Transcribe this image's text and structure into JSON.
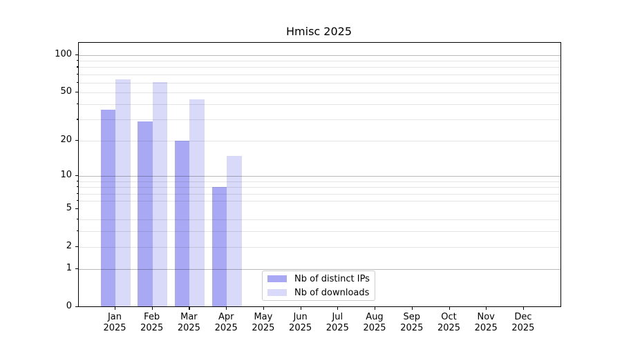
{
  "chart_data": {
    "type": "bar",
    "title": "Hmisc 2025",
    "categories": [
      "Jan",
      "Feb",
      "Mar",
      "Apr",
      "May",
      "Jun",
      "Jul",
      "Aug",
      "Sep",
      "Oct",
      "Nov",
      "Dec"
    ],
    "category_year": "2025",
    "series": [
      {
        "name": "Nb of distinct IPs",
        "color": "#a8a8f4",
        "values": [
          36,
          29,
          20,
          8,
          null,
          null,
          null,
          null,
          null,
          null,
          null,
          null
        ]
      },
      {
        "name": "Nb of downloads",
        "color": "#d9d9f9",
        "values": [
          64,
          61,
          44,
          15,
          null,
          null,
          null,
          null,
          null,
          null,
          null,
          null
        ]
      }
    ],
    "xlabel": "",
    "ylabel": "",
    "y_axis": {
      "scale": "log1p",
      "ticks": [
        0,
        1,
        2,
        5,
        10,
        20,
        50,
        100
      ],
      "major_gridlines": [
        1,
        10,
        100
      ],
      "minor_gridlines": [
        2,
        3,
        4,
        6,
        7,
        8,
        9,
        20,
        30,
        40,
        50,
        60,
        70,
        80,
        90
      ],
      "range": [
        0,
        125
      ]
    },
    "grid": "horizontal",
    "legend": {
      "position": "bottom-center",
      "entries": [
        "Nb of distinct IPs",
        "Nb of downloads"
      ]
    },
    "colors": {
      "distinct_ips_bar": "#a8a8f4",
      "downloads_bar": "#d9d9f9",
      "major_grid": "#b9b9b9",
      "minor_grid": "#e6e6e6",
      "spine": "#000000",
      "text": "#000000",
      "legend_border": "#cccccc"
    }
  }
}
